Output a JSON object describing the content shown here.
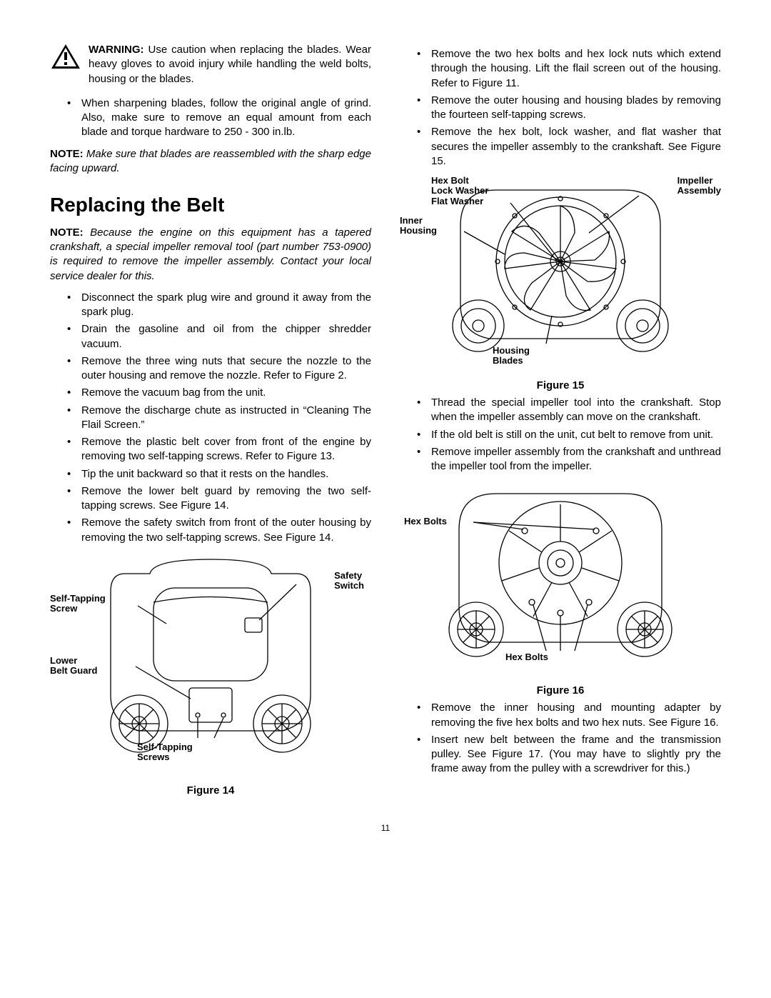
{
  "page_number": "11",
  "warning": {
    "label": "WARNING:",
    "text": " Use caution when replacing the blades. Wear heavy gloves to avoid injury while handling the weld bolts, housing or the blades."
  },
  "left_bullets_top": [
    "When sharpening blades, follow the original angle of grind. Also, make sure to remove an equal amount from each blade and torque hardware to 250 - 300 in.lb."
  ],
  "note1": {
    "label": "NOTE:",
    "text": " Make sure that blades are reassembled with the sharp edge facing upward."
  },
  "section_title": "Replacing the Belt",
  "note2": {
    "label": "NOTE:",
    "text": " Because the engine on this equipment has a tapered crankshaft, a special impeller removal tool (part number 753-0900) is required to remove the impeller assembly. Contact your local service dealer for this."
  },
  "left_bullets_main": [
    "Disconnect the spark plug wire and ground it away from the spark plug.",
    "Drain the gasoline and oil from the chipper shredder vacuum.",
    "Remove the three wing nuts that secure the nozzle to the outer housing and remove the nozzle. Refer to Figure 2.",
    "Remove the vacuum bag from the unit.",
    "Remove the discharge chute as instructed in “Cleaning The Flail Screen.”",
    "Remove the plastic belt cover from front of the engine by removing two self-tapping screws. Refer to Figure 13.",
    "Tip the unit backward so that it rests on the handles.",
    "Remove the lower belt guard by removing the two self-tapping screws. See Figure 14.",
    "Remove the safety switch from front of the outer housing by removing the two self-tapping screws. See Figure 14."
  ],
  "right_bullets_top": [
    "Remove the two hex bolts and hex lock nuts which extend through the housing. Lift the flail screen out of the housing. Refer to Figure 11.",
    "Remove the outer housing and housing blades by removing the fourteen self-tapping screws.",
    "Remove the hex bolt, lock washer, and flat washer that secures the impeller assembly to the crankshaft. See Figure 15."
  ],
  "right_bullets_mid": [
    "Thread the special impeller tool into the crankshaft. Stop when the impeller assembly can move on the crankshaft.",
    "If the old belt is still on the unit, cut belt to remove from unit.",
    "Remove impeller assembly from the crankshaft and unthread the impeller tool from the impeller."
  ],
  "right_bullets_bottom": [
    "Remove the inner housing and mounting adapter by removing the five hex bolts and two hex nuts. See Figure 16.",
    "Insert new belt between the frame and the transmission pulley. See Figure 17. (You may have to slightly pry the frame away from the pulley with a screwdriver for this.)"
  ],
  "fig14": {
    "caption": "Figure 14",
    "labels": {
      "safety_switch": "Safety\nSwitch",
      "self_tapping_screw": "Self-Tapping\nScrew",
      "lower_belt_guard": "Lower\nBelt Guard",
      "self_tapping_screws": "Self-Tapping\nScrews"
    }
  },
  "fig15": {
    "caption": "Figure 15",
    "labels": {
      "hex_bolt": "Hex Bolt\nLock Washer\nFlat Washer",
      "impeller_assembly": "Impeller\nAssembly",
      "inner_housing": "Inner\nHousing",
      "housing_blades": "Housing\nBlades"
    }
  },
  "fig16": {
    "caption": "Figure 16",
    "labels": {
      "hex_bolts_top": "Hex Bolts",
      "hex_bolts_bottom": "Hex Bolts"
    }
  },
  "colors": {
    "text": "#000000",
    "bg": "#ffffff",
    "stroke": "#000000"
  }
}
